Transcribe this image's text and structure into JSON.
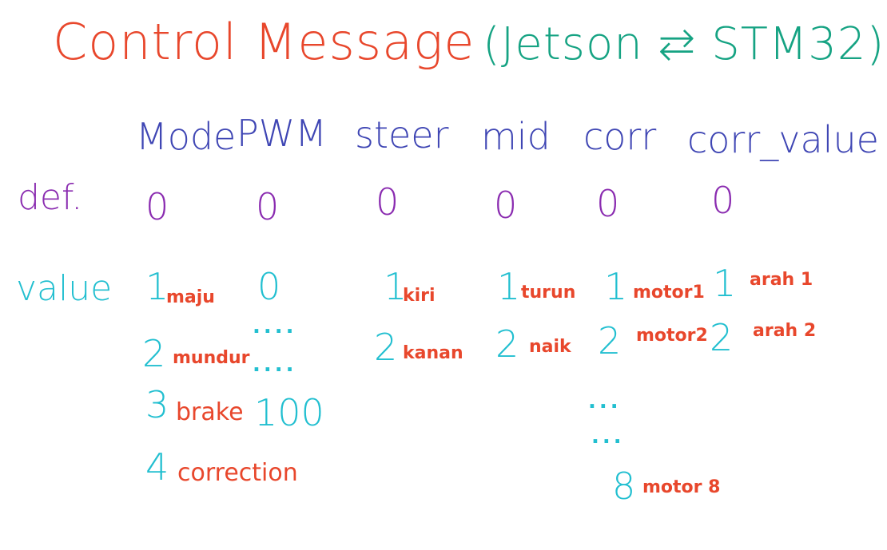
{
  "title": {
    "main": "Control Message",
    "sub": "(Jetson ⇄ STM32)"
  },
  "columns": [
    "Mode",
    "PWM",
    "steer",
    "mid",
    "corr",
    "corr_value"
  ],
  "rows": {
    "def_label": "def.",
    "value_label": "value"
  },
  "defaults": [
    "0",
    "0",
    "0",
    "0",
    "0",
    "0"
  ],
  "values": {
    "mode": [
      {
        "num": "1",
        "desc": "maju"
      },
      {
        "num": "2",
        "desc": "mundur"
      },
      {
        "num": "3",
        "desc": "brake"
      },
      {
        "num": "4",
        "desc": "correction"
      }
    ],
    "pwm": {
      "first": "0",
      "ellipsis_1": "....",
      "ellipsis_2": "....",
      "last": "100"
    },
    "steer": [
      {
        "num": "1",
        "desc": "kiri"
      },
      {
        "num": "2",
        "desc": "kanan"
      }
    ],
    "mid": [
      {
        "num": "1",
        "desc": "turun"
      },
      {
        "num": "2",
        "desc": "naik"
      }
    ],
    "corr": {
      "items": [
        {
          "num": "1",
          "desc": "motor1"
        },
        {
          "num": "2",
          "desc": "motor2"
        }
      ],
      "ellipsis_1": "...",
      "ellipsis_2": "...",
      "last": {
        "num": "8",
        "desc": "motor 8"
      }
    },
    "corr_value": [
      {
        "num": "1",
        "desc": "arah 1"
      },
      {
        "num": "2",
        "desc": "arah 2"
      }
    ]
  },
  "colors": {
    "title": "#e8472c",
    "subtitle": "#16a383",
    "headers": "#3f46b4",
    "defaults": "#8a2bb0",
    "values": "#22bfd0",
    "descriptions": "#e8472c"
  }
}
